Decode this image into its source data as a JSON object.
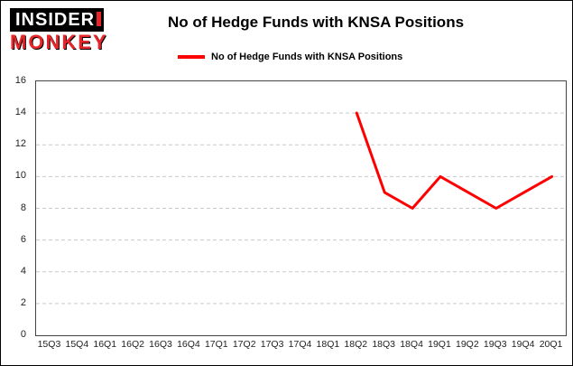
{
  "logo": {
    "line1": "INSIDER",
    "line2": "MONKEY",
    "monkey_color": "#e8262a",
    "box_color": "#000000"
  },
  "header": {
    "title": "No of Hedge Funds with KNSA Positions"
  },
  "legend": {
    "label": "No of Hedge Funds with KNSA Positions",
    "color": "#ff0000"
  },
  "chart_data": {
    "type": "line",
    "title": "No of Hedge Funds with KNSA Positions",
    "xlabel": "",
    "ylabel": "",
    "categories": [
      "15Q3",
      "15Q4",
      "16Q1",
      "16Q2",
      "16Q3",
      "16Q4",
      "17Q1",
      "17Q2",
      "17Q3",
      "17Q4",
      "18Q1",
      "18Q2",
      "18Q3",
      "18Q4",
      "19Q1",
      "19Q2",
      "19Q3",
      "19Q4",
      "20Q1"
    ],
    "series": [
      {
        "name": "No of Hedge Funds with KNSA Positions",
        "color": "#ff0000",
        "values": [
          null,
          null,
          null,
          null,
          null,
          null,
          null,
          null,
          null,
          null,
          null,
          14,
          9,
          8,
          10,
          9,
          8,
          9,
          10
        ]
      }
    ],
    "ylim": [
      0,
      16
    ],
    "ytick_step": 2,
    "grid": true,
    "legend_position": "top"
  }
}
